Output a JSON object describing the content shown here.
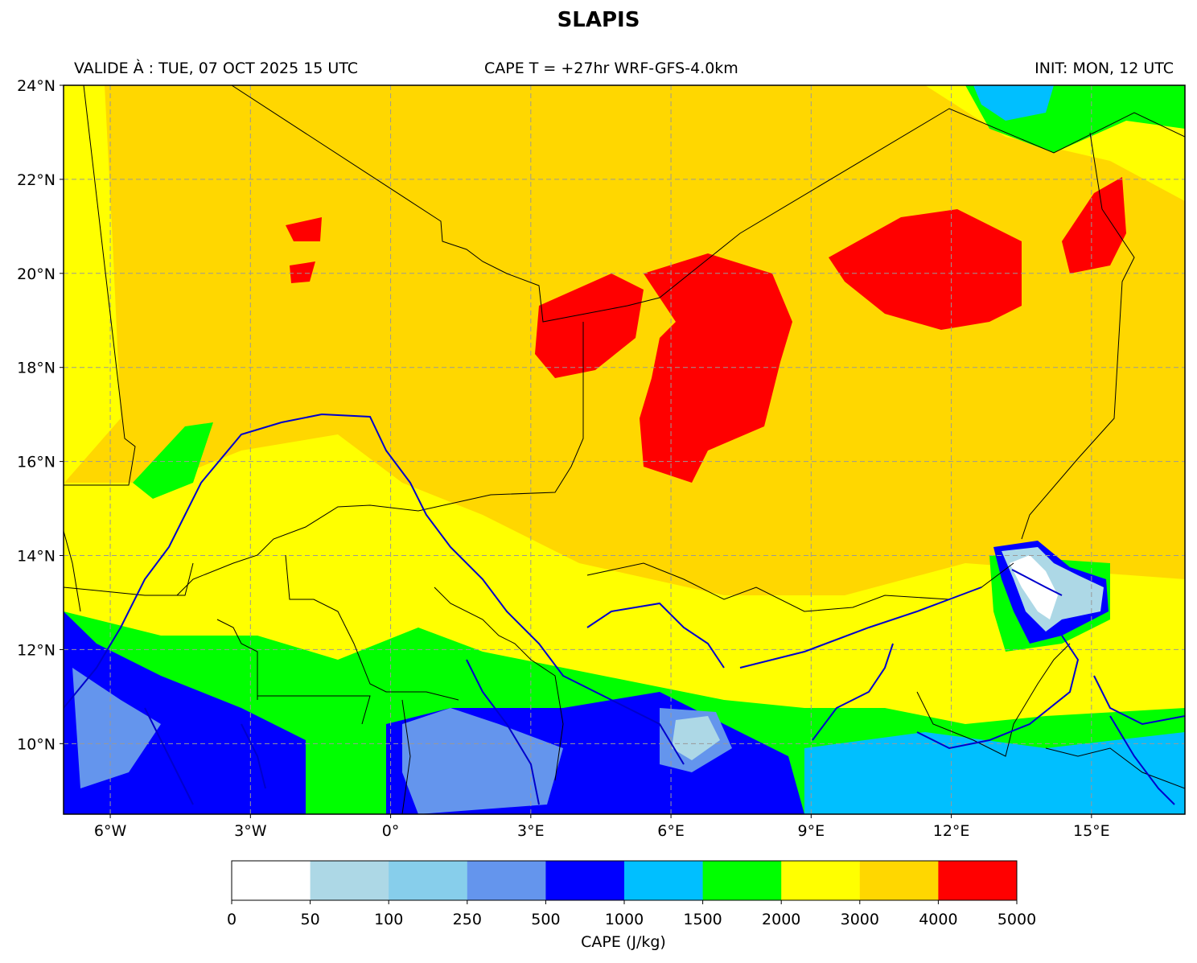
{
  "header": {
    "title": "SLAPIS",
    "valid": "VALIDE À : TUE, 07 OCT 2025 15 UTC",
    "center": "CAPE T = +27hr WRF-GFS-4.0km",
    "init": "INIT: MON, 12 UTC"
  },
  "map": {
    "lon_range": [
      -7,
      17
    ],
    "lat_range": [
      8.5,
      24
    ],
    "lon_ticks": [
      {
        "value": -6,
        "label": "6°W"
      },
      {
        "value": -3,
        "label": "3°W"
      },
      {
        "value": 0,
        "label": "0°"
      },
      {
        "value": 3,
        "label": "3°E"
      },
      {
        "value": 6,
        "label": "6°E"
      },
      {
        "value": 9,
        "label": "9°E"
      },
      {
        "value": 12,
        "label": "12°E"
      },
      {
        "value": 15,
        "label": "15°E"
      }
    ],
    "lat_ticks": [
      {
        "value": 24,
        "label": "24°N"
      },
      {
        "value": 22,
        "label": "22°N"
      },
      {
        "value": 20,
        "label": "20°N"
      },
      {
        "value": 18,
        "label": "18°N"
      },
      {
        "value": 16,
        "label": "16°N"
      },
      {
        "value": 14,
        "label": "14°N"
      },
      {
        "value": 12,
        "label": "12°N"
      },
      {
        "value": 10,
        "label": "10°N"
      }
    ],
    "grid": true
  },
  "colorbar": {
    "label": "CAPE (J/kg)",
    "bounds": [
      "0",
      "50",
      "100",
      "250",
      "500",
      "1000",
      "1500",
      "2000",
      "3000",
      "4000",
      "5000"
    ],
    "colors": [
      "#ffffff",
      "#add8e6",
      "#87ceeb",
      "#6495ed",
      "#0000ff",
      "#00bfff",
      "#00ff00",
      "#ffff00",
      "#ffd700",
      "#ff0000"
    ]
  }
}
